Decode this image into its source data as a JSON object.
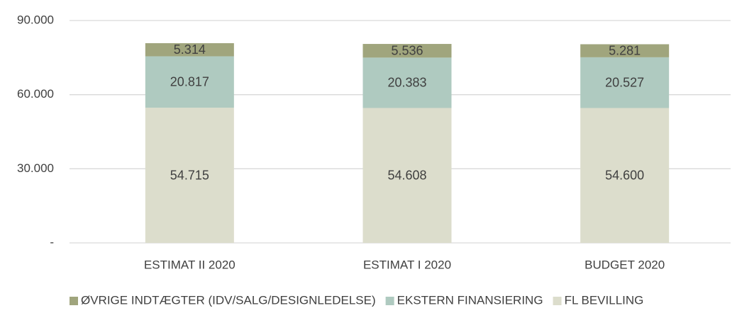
{
  "chart_data": {
    "type": "stacked_bar",
    "categories": [
      "ESTIMAT II 2020",
      "ESTIMAT I 2020",
      "BUDGET 2020"
    ],
    "series": [
      {
        "name": "FL BEVILLING",
        "color": "#dcddcc",
        "values": [
          54715,
          54608,
          54600
        ],
        "value_labels": [
          "54.715",
          "54.608",
          "54.600"
        ]
      },
      {
        "name": "EKSTERN FINANSIERING",
        "color": "#afcac0",
        "values": [
          20817,
          20383,
          20527
        ],
        "value_labels": [
          "20.817",
          "20.383",
          "20.527"
        ]
      },
      {
        "name": "ØVRIGE INDTÆGTER (IDV/SALG/DESIGNLEDELSE)",
        "color": "#a0a57d",
        "values": [
          5314,
          5536,
          5281
        ],
        "value_labels": [
          "5.314",
          "5.536",
          "5.281"
        ]
      }
    ],
    "ylim": [
      0,
      90000
    ],
    "yticks": [
      {
        "value": 0,
        "label": "-"
      },
      {
        "value": 30000,
        "label": "30.000"
      },
      {
        "value": 60000,
        "label": "60.000"
      },
      {
        "value": 90000,
        "label": "90.000"
      }
    ],
    "grid": true,
    "legend": "bottom"
  }
}
